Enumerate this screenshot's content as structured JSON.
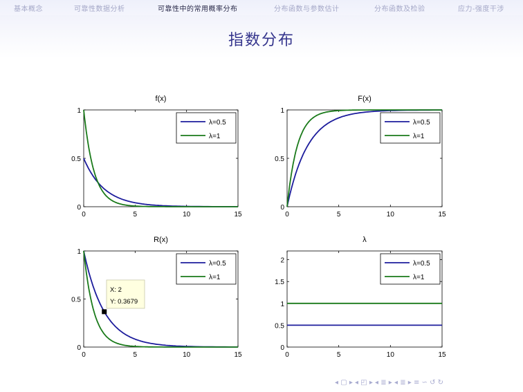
{
  "nav": {
    "items": [
      {
        "label": "基本概念",
        "active": false
      },
      {
        "label": "可靠性数据分析",
        "active": false
      },
      {
        "label": "可靠性中的常用概率分布",
        "active": true
      },
      {
        "label": "分布函数与参数估计",
        "active": false
      },
      {
        "label": "分布函数及检验",
        "active": false
      },
      {
        "label": "应力-强度干涉",
        "active": false
      }
    ]
  },
  "slide": {
    "title": "指数分布"
  },
  "colors": {
    "lambda_half": "#1c1c9c",
    "lambda_one": "#1a7a1a",
    "axis": "#000000"
  },
  "chart_data": [
    {
      "type": "line",
      "id": "pdf",
      "title": "f(x)",
      "xlim": [
        0,
        15
      ],
      "ylim": [
        0,
        1
      ],
      "xticks": [
        "0",
        "5",
        "10",
        "15"
      ],
      "yticks": [
        "0",
        "0.5",
        "1"
      ],
      "legend_position": "top-right",
      "x": [
        0,
        1,
        2,
        3,
        4,
        5,
        6,
        8,
        10,
        15
      ],
      "series": [
        {
          "name": "λ=0.5",
          "values": [
            0.5,
            0.3033,
            0.1839,
            0.1116,
            0.0677,
            0.041,
            0.0249,
            0.0092,
            0.0034,
            0.0003
          ]
        },
        {
          "name": "λ=1",
          "values": [
            1,
            0.3679,
            0.1353,
            0.0498,
            0.0183,
            0.0067,
            0.0025,
            0.0003,
            0,
            0
          ]
        }
      ]
    },
    {
      "type": "line",
      "id": "cdf",
      "title": "F(x)",
      "xlim": [
        0,
        15
      ],
      "ylim": [
        0,
        1
      ],
      "xticks": [
        "0",
        "5",
        "10",
        "15"
      ],
      "yticks": [
        "0",
        "0.5",
        "1"
      ],
      "legend_position": "top-right",
      "x": [
        0,
        1,
        2,
        3,
        4,
        5,
        6,
        8,
        10,
        15
      ],
      "series": [
        {
          "name": "λ=0.5",
          "values": [
            0,
            0.3935,
            0.6321,
            0.7769,
            0.8647,
            0.9179,
            0.9502,
            0.9817,
            0.9933,
            0.9994
          ]
        },
        {
          "name": "λ=1",
          "values": [
            0,
            0.6321,
            0.8647,
            0.9502,
            0.9817,
            0.9933,
            0.9975,
            0.9997,
            1,
            1
          ]
        }
      ]
    },
    {
      "type": "line",
      "id": "reliability",
      "title": "R(x)",
      "xlim": [
        0,
        15
      ],
      "ylim": [
        0,
        1
      ],
      "xticks": [
        "0",
        "5",
        "10",
        "15"
      ],
      "yticks": [
        "0",
        "0.5",
        "1"
      ],
      "legend_position": "top-right",
      "x": [
        0,
        1,
        2,
        3,
        4,
        5,
        6,
        8,
        10,
        15
      ],
      "series": [
        {
          "name": "λ=0.5",
          "values": [
            1,
            0.6065,
            0.3679,
            0.2231,
            0.1353,
            0.0821,
            0.0498,
            0.0183,
            0.0067,
            0.0006
          ]
        },
        {
          "name": "λ=1",
          "values": [
            1,
            0.3679,
            0.1353,
            0.0498,
            0.0183,
            0.0067,
            0.0025,
            0.0003,
            0,
            0
          ]
        }
      ],
      "datatip": {
        "x": 2,
        "y": 0.3679,
        "x_text": "X: 2",
        "y_text": "Y: 0.3679"
      }
    },
    {
      "type": "line",
      "id": "rate",
      "title": "λ",
      "xlim": [
        0,
        15
      ],
      "ylim": [
        0,
        2.2
      ],
      "xticks": [
        "0",
        "5",
        "10",
        "15"
      ],
      "yticks": [
        "0",
        "0.5",
        "1",
        "1.5",
        "2"
      ],
      "legend_position": "top-right",
      "x": [
        0,
        15
      ],
      "series": [
        {
          "name": "λ=0.5",
          "values": [
            0.5,
            0.5
          ]
        },
        {
          "name": "λ=1",
          "values": [
            1,
            1
          ]
        }
      ]
    }
  ],
  "nav_symbols": "◂ ▢ ▸  ◂ ◰ ▸  ◂ ≣ ▸  ◂ ≣ ▸    ≡    ∽ ↺ ↻"
}
